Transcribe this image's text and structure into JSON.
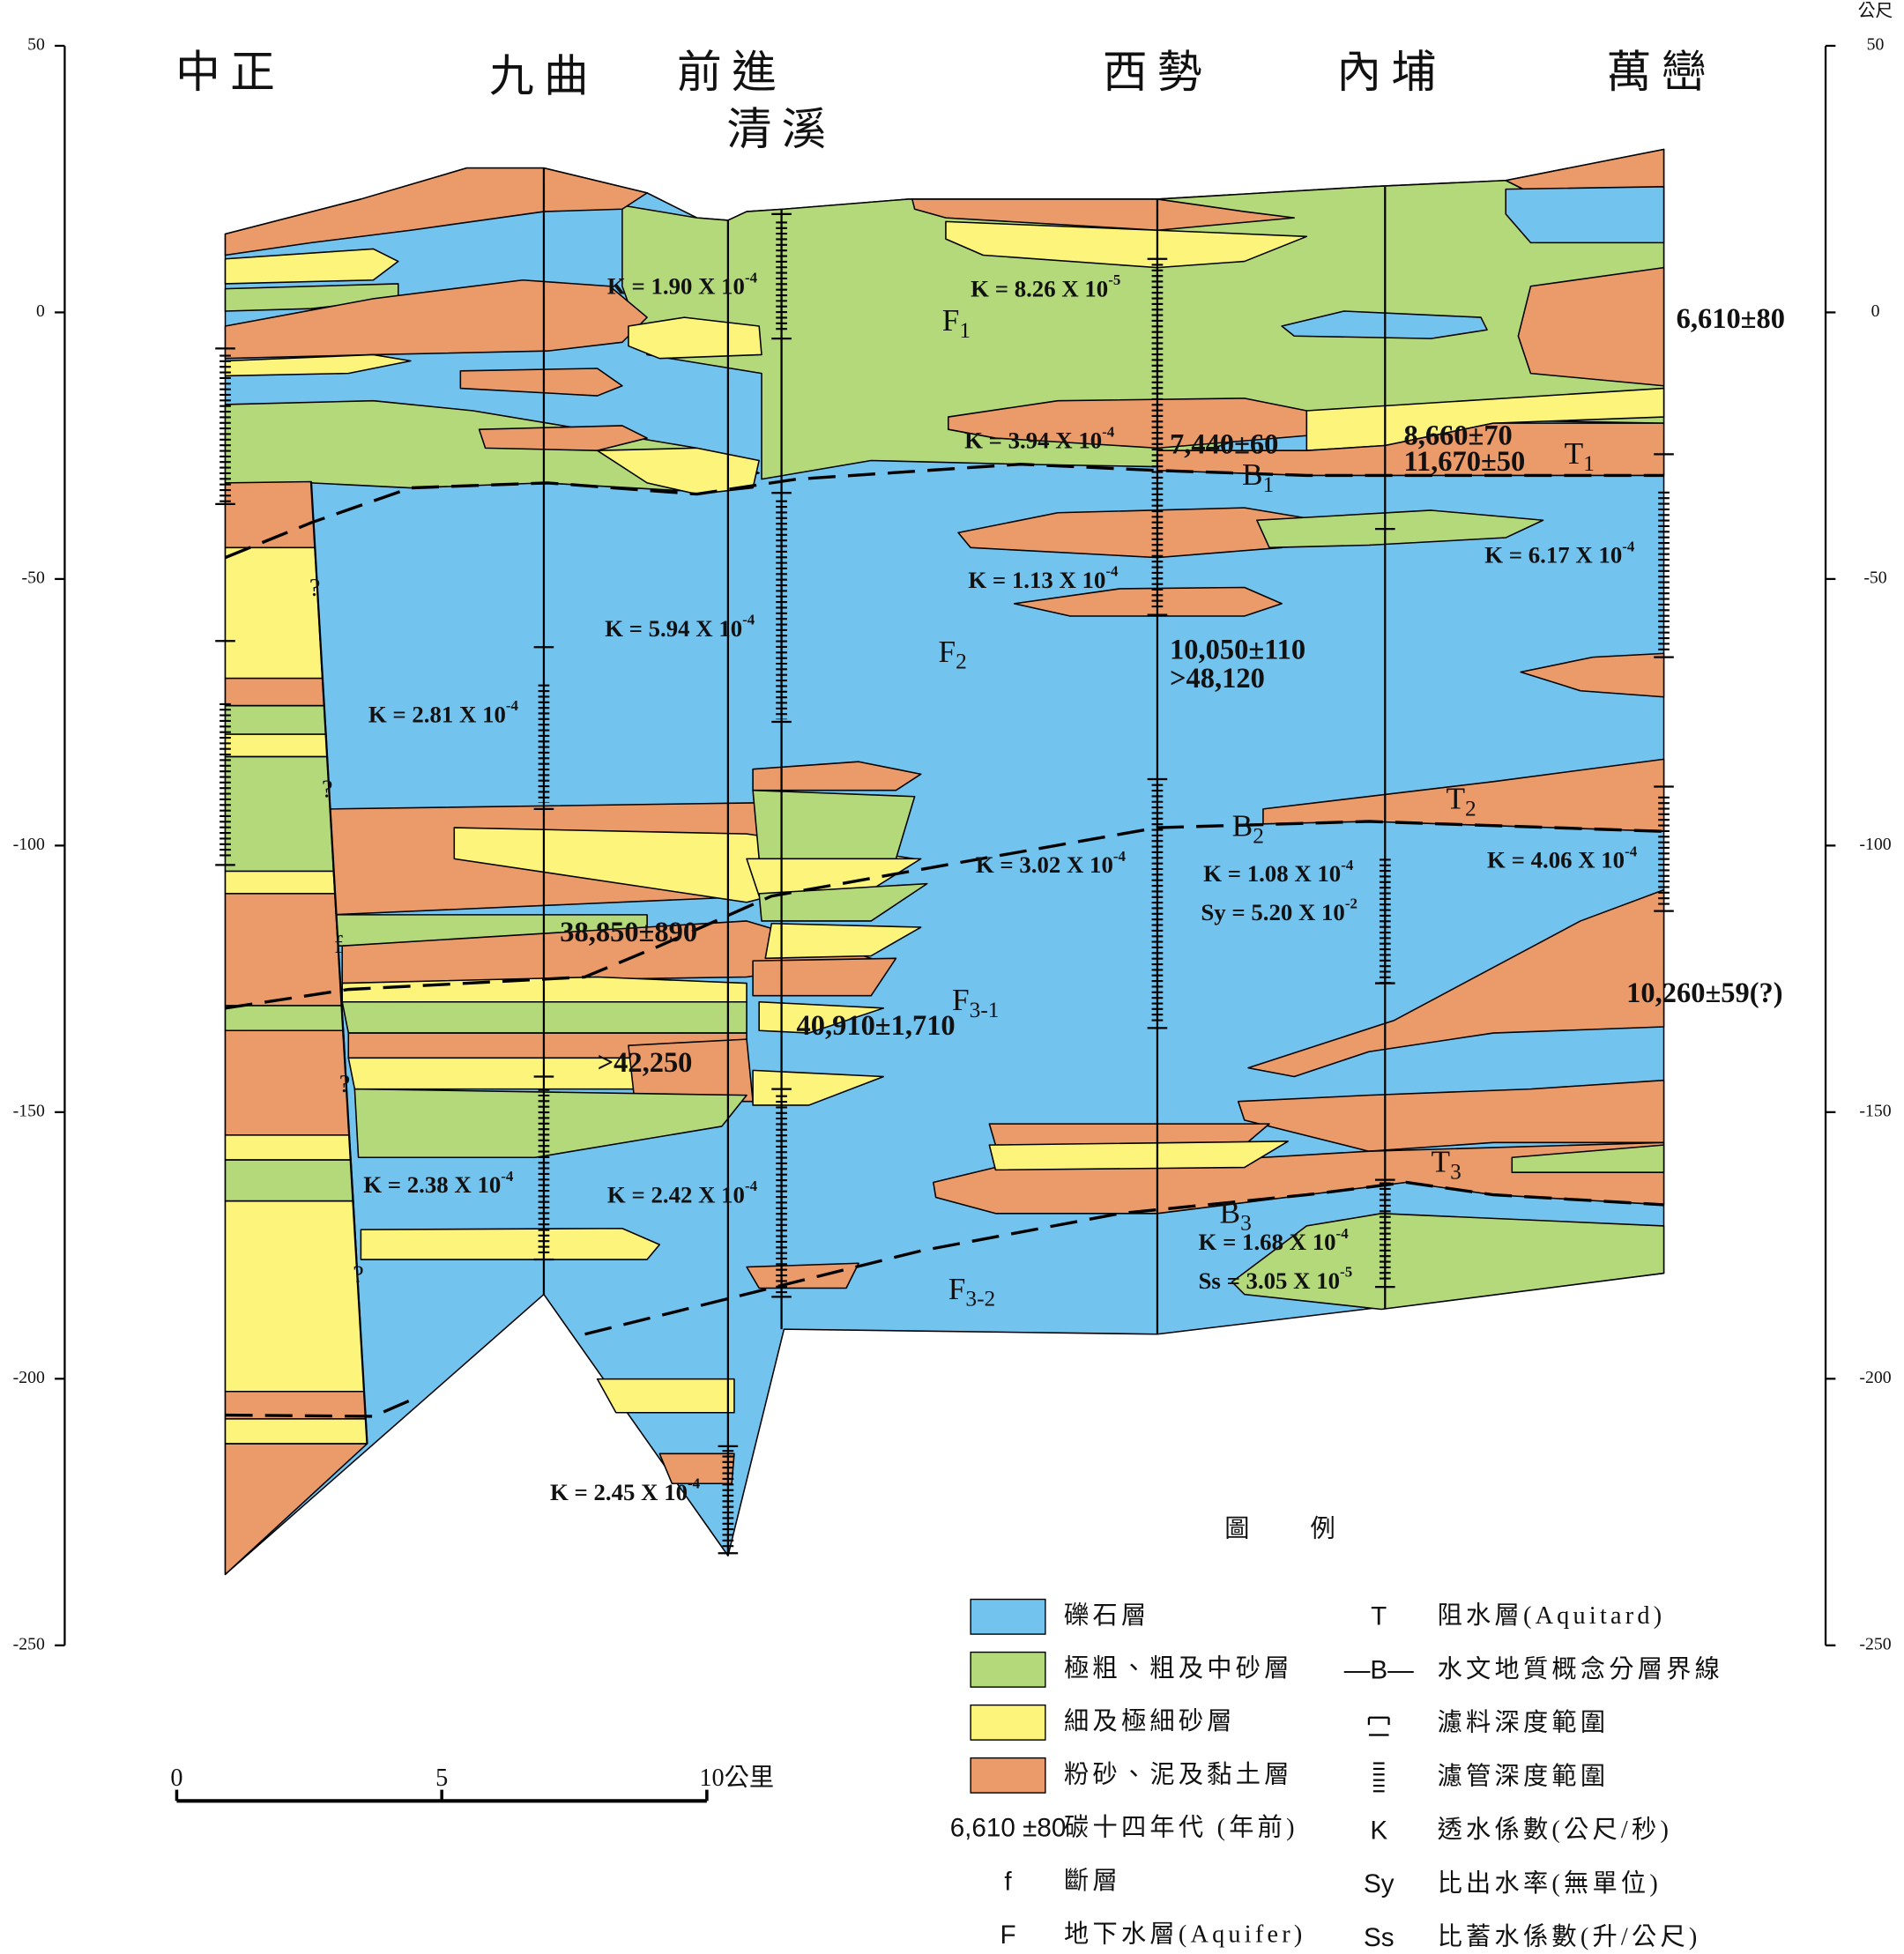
{
  "places": [
    "中正",
    "九曲",
    "前進",
    "清溪",
    "西勢",
    "內埔",
    "萬巒"
  ],
  "depth_axis": {
    "unit": "公尺",
    "ticks": [
      50,
      0,
      -50,
      -100,
      -150,
      -200,
      -250
    ]
  },
  "k_labels": [
    {
      "text": "K = 1.90 X 10",
      "exp": "-4"
    },
    {
      "text": "K = 8.26 X 10",
      "exp": "-5"
    },
    {
      "text": "K = 3.94 X 10",
      "exp": "-4"
    },
    {
      "text": "K = 1.13 X 10",
      "exp": "-4"
    },
    {
      "text": "K = 6.17 X 10",
      "exp": "-4"
    },
    {
      "text": "K = 5.94 X 10",
      "exp": "-4"
    },
    {
      "text": "K = 2.81 X 10",
      "exp": "-4"
    },
    {
      "text": "K = 3.02 X 10",
      "exp": "-4"
    },
    {
      "text": "K = 1.08 X 10",
      "exp": "-4"
    },
    {
      "text": "Sy = 5.20 X 10",
      "exp": "-2"
    },
    {
      "text": "K = 4.06 X 10",
      "exp": "-4"
    },
    {
      "text": "K = 2.38 X 10",
      "exp": "-4"
    },
    {
      "text": "K = 2.42 X 10",
      "exp": "-4"
    },
    {
      "text": "K = 1.68 X 10",
      "exp": "-4"
    },
    {
      "text": "Ss = 3.05 X 10",
      "exp": "-5"
    },
    {
      "text": "K = 2.45 X 10",
      "exp": "-4"
    }
  ],
  "dates": [
    "6,610±80",
    "7,440±60",
    "8,660±70",
    "11,670±50",
    "10,050±110",
    ">48,120",
    "38,850±890",
    "40,910±1,710",
    ">42,250",
    "10,260±59(?)"
  ],
  "units": [
    {
      "main": "F",
      "sub": "1"
    },
    {
      "main": "F",
      "sub": "2"
    },
    {
      "main": "F",
      "sub": "3-1"
    },
    {
      "main": "F",
      "sub": "3-2"
    },
    {
      "main": "B",
      "sub": "1"
    },
    {
      "main": "B",
      "sub": "2"
    },
    {
      "main": "B",
      "sub": "3"
    },
    {
      "main": "T",
      "sub": "1"
    },
    {
      "main": "T",
      "sub": "2"
    },
    {
      "main": "T",
      "sub": "3"
    }
  ],
  "question_marks": [
    "?",
    "?",
    "?",
    "?"
  ],
  "fault": "f",
  "scale_bar": {
    "ticks": [
      0,
      5,
      {
        "value": 10,
        "label": "10公里"
      }
    ]
  },
  "legend": {
    "title": "圖　　例",
    "layers": [
      {
        "label": "礫石層",
        "color": "#73c3ef"
      },
      {
        "label": "極粗、粗及中砂層",
        "color": "#b4d97b"
      },
      {
        "label": "細及極細砂層",
        "color": "#fdf47b"
      },
      {
        "label": "粉砂、泥及黏土層",
        "color": "#eb9a69"
      }
    ],
    "symbols": [
      {
        "symbol": "6,610 ±80",
        "label": "碳十四年代 (年前)"
      },
      {
        "symbol": "f",
        "label": "斷層"
      },
      {
        "symbol": "F",
        "label": "地下水層(Aquifer)"
      }
    ],
    "right": [
      {
        "symbol": "T",
        "label": "阻水層(Aquitard)"
      },
      {
        "symbol": "—B—",
        "label": "水文地質概念分層界線"
      },
      {
        "label": "濾料深度範圍"
      },
      {
        "label": "濾管深度範圍"
      },
      {
        "symbol": "K",
        "label": "透水係數(公尺/秒)"
      },
      {
        "symbol": "Sy",
        "label": "比出水率(無單位)"
      },
      {
        "symbol": "Ss",
        "label": "比蓄水係數(升/公尺)"
      }
    ]
  }
}
